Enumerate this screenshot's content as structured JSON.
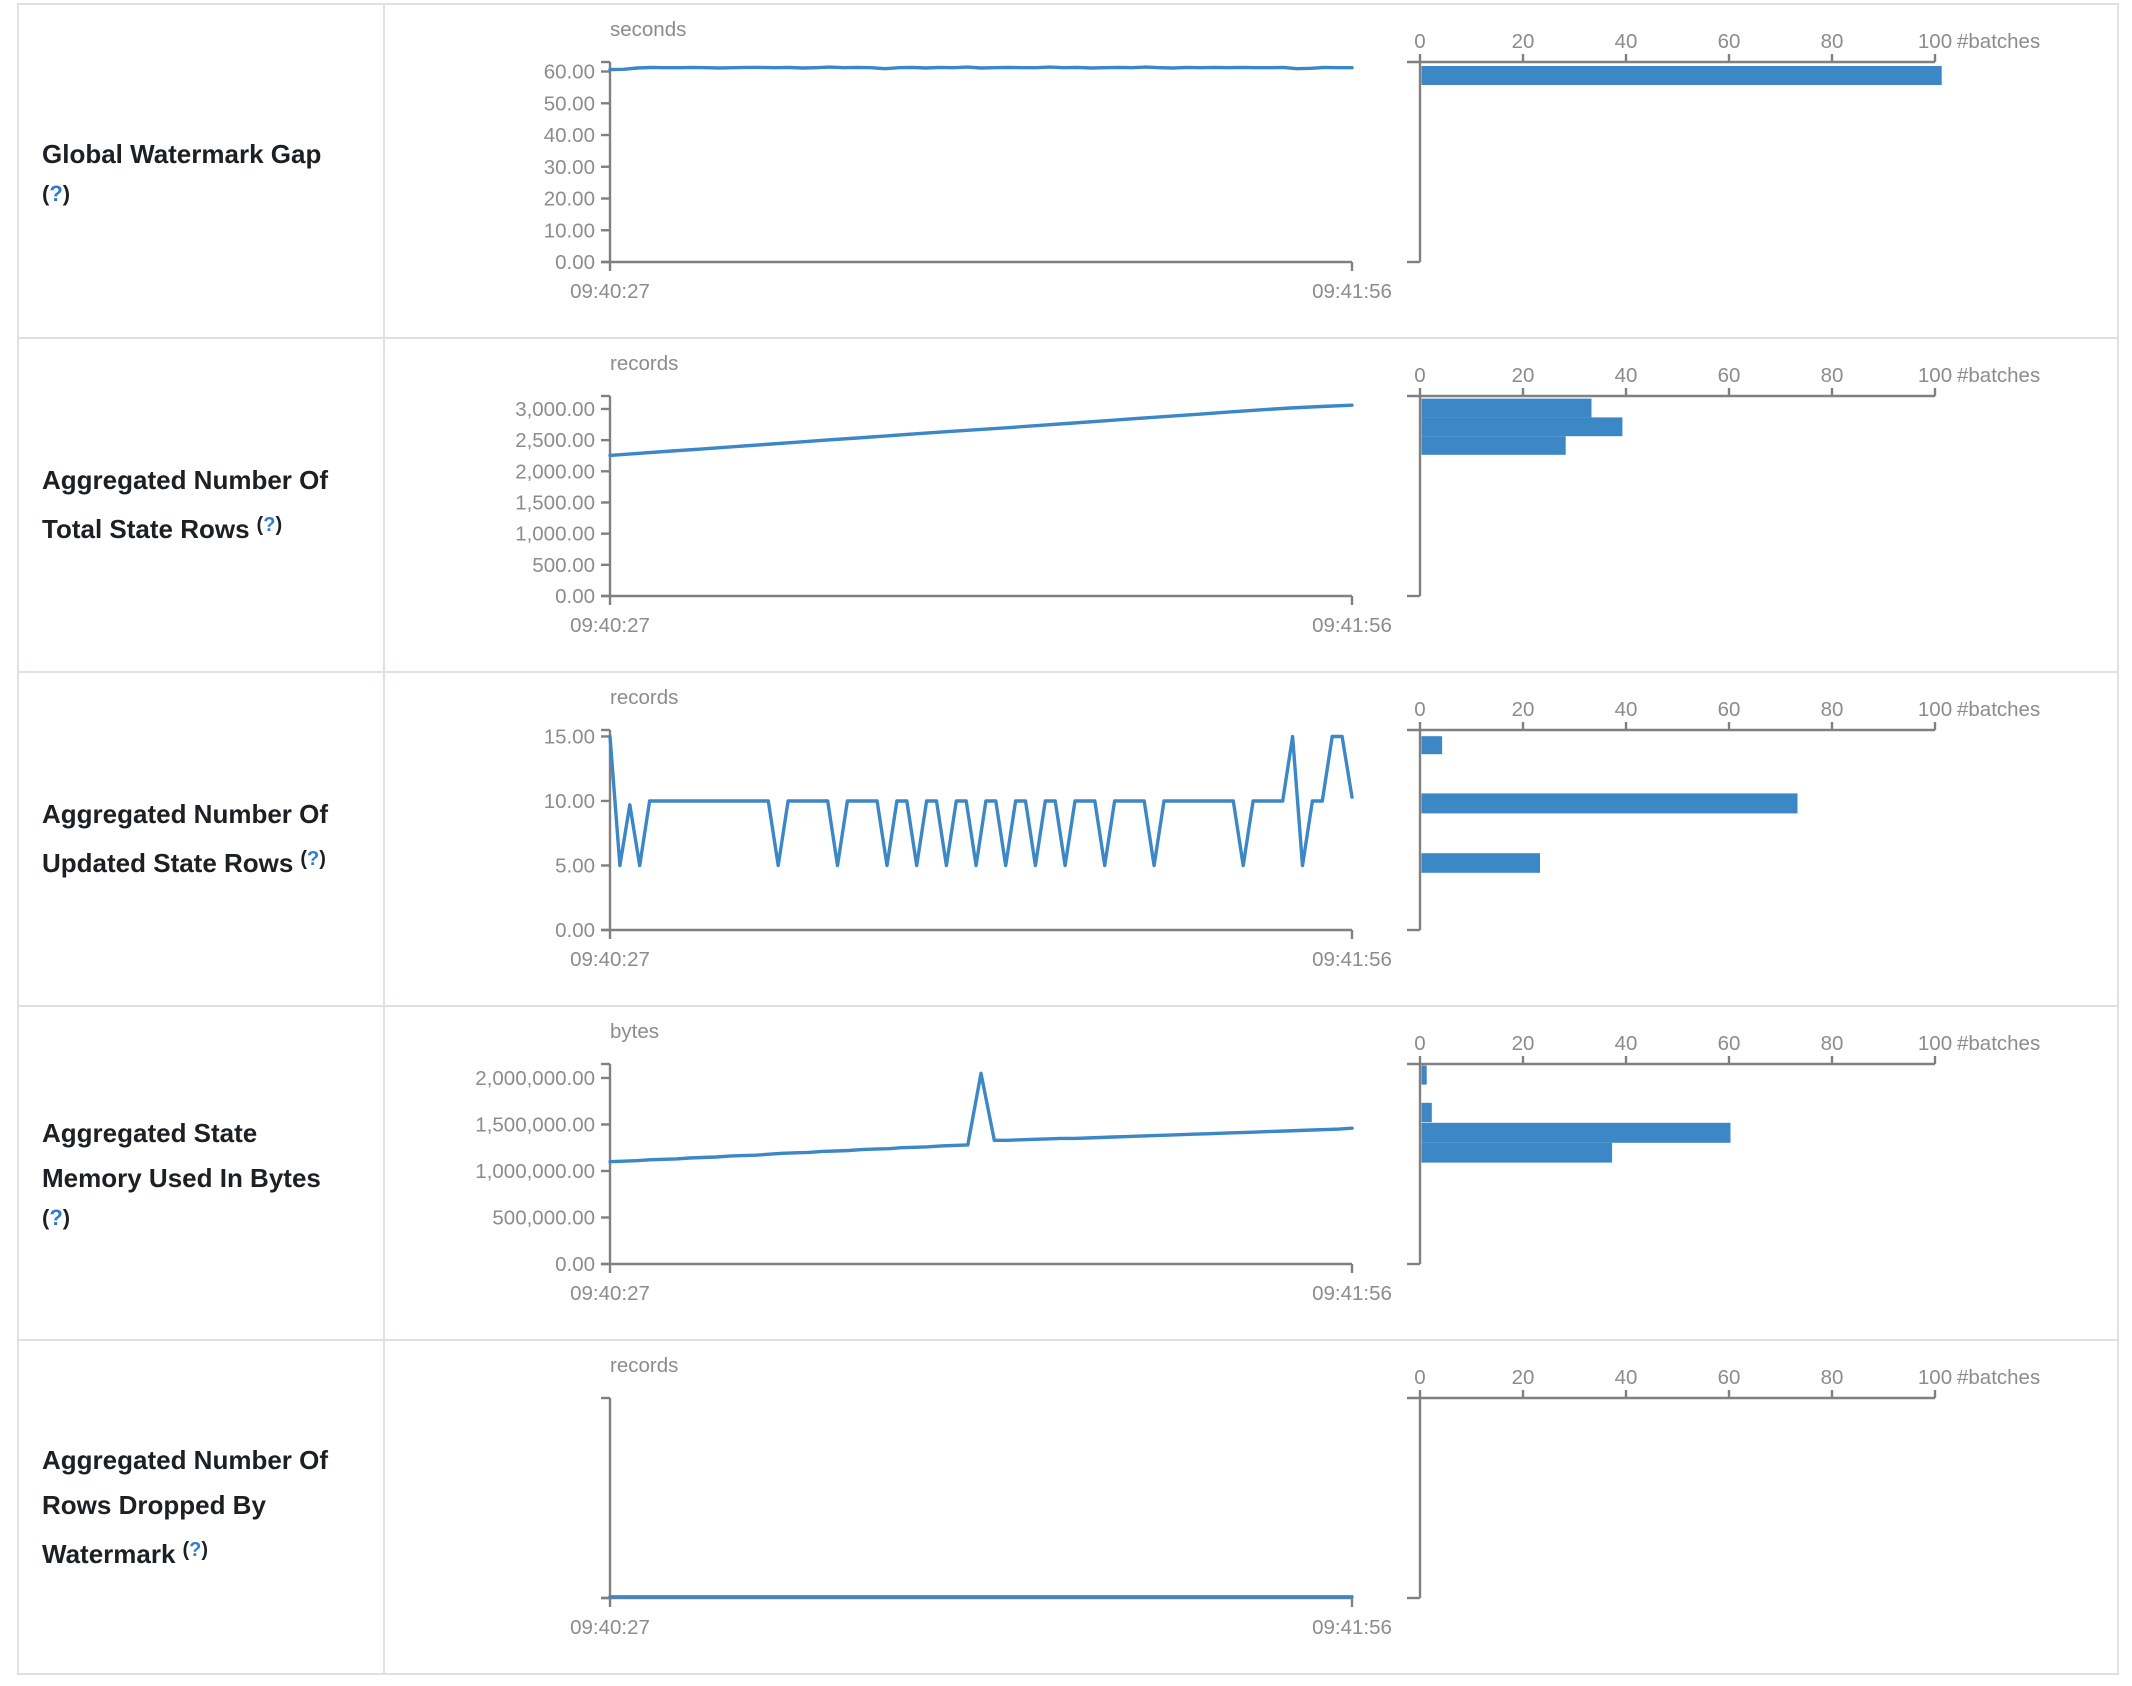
{
  "theme": {
    "accent_blue": "#3c87c6",
    "axis_gray": "#808080",
    "tick_text_gray": "#8c8c8c",
    "label_text": "#1c2025",
    "help_blue": "#2e7cd1",
    "border_gray": "#dde1e6",
    "background": "#ffffff"
  },
  "help_marker": {
    "open": "(",
    "q": "?",
    "close": ")"
  },
  "time_axis": {
    "start_label": "09:40:27",
    "end_label": "09:41:56"
  },
  "histogram_axis": {
    "tick_labels": [
      "0",
      "20",
      "40",
      "60",
      "80",
      "100"
    ],
    "max": 100,
    "unit_label": "#batches"
  },
  "rows": [
    {
      "label_lines": [
        "Global Watermark Gap"
      ],
      "help_inline": false,
      "chart_data": {
        "type": "line",
        "unit": "seconds",
        "x_range": [
          "09:40:27",
          "09:41:56"
        ],
        "y_axis_top": 63,
        "yticks": [
          {
            "v": 60,
            "label": "60.00"
          },
          {
            "v": 50,
            "label": "50.00"
          },
          {
            "v": 40,
            "label": "40.00"
          },
          {
            "v": 30,
            "label": "30.00"
          },
          {
            "v": 20,
            "label": "20.00"
          },
          {
            "v": 10,
            "label": "10.00"
          },
          {
            "v": 0,
            "label": "0.00"
          }
        ],
        "values": [
          60.6,
          60.7,
          61.1,
          61.3,
          61.2,
          61.2,
          61.3,
          61.2,
          61.1,
          61.2,
          61.3,
          61.3,
          61.2,
          61.3,
          61.1,
          61.2,
          61.4,
          61.2,
          61.3,
          61.2,
          60.9,
          61.2,
          61.3,
          61.1,
          61.3,
          61.2,
          61.4,
          61.1,
          61.2,
          61.3,
          61.2,
          61.2,
          61.4,
          61.2,
          61.3,
          61.1,
          61.2,
          61.3,
          61.2,
          61.4,
          61.2,
          61.1,
          61.3,
          61.2,
          61.3,
          61.2,
          61.3,
          61.2,
          61.2,
          61.3,
          60.9,
          61.0,
          61.3,
          61.2,
          61.2
        ]
      },
      "histogram_data": {
        "type": "bar",
        "unit": "#batches",
        "xticks": [
          0,
          20,
          40,
          60,
          80,
          100
        ],
        "bars": [
          {
            "count": 101,
            "frac_top": 0.02,
            "frac_bottom": 0.115
          }
        ]
      }
    },
    {
      "label_lines": [
        "Aggregated Number Of",
        "Total State Rows"
      ],
      "help_inline": true,
      "chart_data": {
        "type": "line",
        "unit": "records",
        "x_range": [
          "09:40:27",
          "09:41:56"
        ],
        "y_axis_top": 3208,
        "yticks": [
          {
            "v": 3000,
            "label": "3,000.00"
          },
          {
            "v": 2500,
            "label": "2,500.00"
          },
          {
            "v": 2000,
            "label": "2,000.00"
          },
          {
            "v": 1500,
            "label": "1,500.00"
          },
          {
            "v": 1000,
            "label": "1,000.00"
          },
          {
            "v": 500,
            "label": "500.00"
          },
          {
            "v": 0,
            "label": "0.00"
          }
        ],
        "values": [
          2255,
          2290,
          2325,
          2360,
          2395,
          2430,
          2465,
          2500,
          2535,
          2570,
          2605,
          2640,
          2672,
          2705,
          2740,
          2775,
          2810,
          2845,
          2880,
          2915,
          2950,
          2985,
          3015,
          3040,
          3060
        ]
      },
      "histogram_data": {
        "type": "bar",
        "unit": "#batches",
        "xticks": [
          0,
          20,
          40,
          60,
          80,
          100
        ],
        "bars": [
          {
            "count": 33,
            "frac_top": 0.013,
            "frac_bottom": 0.107
          },
          {
            "count": 39,
            "frac_top": 0.107,
            "frac_bottom": 0.201
          },
          {
            "count": 28,
            "frac_top": 0.201,
            "frac_bottom": 0.294
          }
        ]
      }
    },
    {
      "label_lines": [
        "Aggregated Number Of",
        "Updated State Rows"
      ],
      "help_inline": true,
      "chart_data": {
        "type": "line",
        "unit": "records",
        "x_range": [
          "09:40:27",
          "09:41:56"
        ],
        "y_axis_top": 15.5,
        "yticks": [
          {
            "v": 15,
            "label": "15.00"
          },
          {
            "v": 10,
            "label": "10.00"
          },
          {
            "v": 5,
            "label": "5.00"
          },
          {
            "v": 0,
            "label": "0.00"
          }
        ],
        "values": [
          15,
          5,
          9.7,
          5,
          10,
          10,
          10,
          10,
          10,
          10,
          10,
          10,
          10,
          10,
          10,
          10,
          10,
          5,
          10,
          10,
          10,
          10,
          10,
          5,
          10,
          10,
          10,
          10,
          5,
          10,
          10,
          5,
          10,
          10,
          5,
          10,
          10,
          5,
          10,
          10,
          5,
          10,
          10,
          5,
          10,
          10,
          5,
          10,
          10,
          10,
          5,
          10,
          10,
          10,
          10,
          5,
          10,
          10,
          10,
          10,
          10,
          10,
          10,
          10,
          5,
          10,
          10,
          10,
          10,
          15,
          5,
          10,
          10,
          15,
          15,
          10.3
        ]
      },
      "histogram_data": {
        "type": "bar",
        "unit": "#batches",
        "xticks": [
          0,
          20,
          40,
          60,
          80,
          100
        ],
        "bars": [
          {
            "count": 4,
            "frac_top": 0.031,
            "frac_bottom": 0.121
          },
          {
            "count": 73,
            "frac_top": 0.317,
            "frac_bottom": 0.417
          },
          {
            "count": 23,
            "frac_top": 0.616,
            "frac_bottom": 0.714
          }
        ]
      }
    },
    {
      "label_lines": [
        "Aggregated State",
        "Memory Used In Bytes"
      ],
      "help_inline": false,
      "chart_data": {
        "type": "line",
        "unit": "bytes",
        "x_range": [
          "09:40:27",
          "09:41:56"
        ],
        "y_axis_top": 2150000,
        "yticks": [
          {
            "v": 2000000,
            "label": "2,000,000.00"
          },
          {
            "v": 1500000,
            "label": "1,500,000.00"
          },
          {
            "v": 1000000,
            "label": "1,000,000.00"
          },
          {
            "v": 500000,
            "label": "500,000.00"
          },
          {
            "v": 0,
            "label": "0.00"
          }
        ],
        "values": [
          1100000,
          1105000,
          1110000,
          1120000,
          1125000,
          1130000,
          1140000,
          1145000,
          1150000,
          1160000,
          1165000,
          1170000,
          1180000,
          1190000,
          1195000,
          1200000,
          1210000,
          1215000,
          1220000,
          1230000,
          1235000,
          1240000,
          1250000,
          1255000,
          1260000,
          1270000,
          1275000,
          1280000,
          2050000,
          1330000,
          1330000,
          1335000,
          1340000,
          1345000,
          1350000,
          1350000,
          1355000,
          1360000,
          1365000,
          1370000,
          1375000,
          1380000,
          1385000,
          1390000,
          1395000,
          1400000,
          1405000,
          1410000,
          1415000,
          1420000,
          1425000,
          1430000,
          1435000,
          1440000,
          1445000,
          1450000,
          1460000
        ]
      },
      "histogram_data": {
        "type": "bar",
        "unit": "#batches",
        "xticks": [
          0,
          20,
          40,
          60,
          80,
          100
        ],
        "bars": [
          {
            "count": 1,
            "frac_top": 0.008,
            "frac_bottom": 0.103
          },
          {
            "count": 2,
            "frac_top": 0.194,
            "frac_bottom": 0.291
          },
          {
            "count": 60,
            "frac_top": 0.294,
            "frac_bottom": 0.394
          },
          {
            "count": 37,
            "frac_top": 0.394,
            "frac_bottom": 0.493
          }
        ]
      }
    },
    {
      "label_lines": [
        "Aggregated Number Of",
        "Rows Dropped By",
        "Watermark"
      ],
      "help_inline": true,
      "chart_data": {
        "type": "line",
        "unit": "records",
        "x_range": [
          "09:40:27",
          "09:41:56"
        ],
        "y_axis_top": 1,
        "yticks": [],
        "values": [
          0,
          0
        ]
      },
      "histogram_data": {
        "type": "bar",
        "unit": "#batches",
        "xticks": [
          0,
          20,
          40,
          60,
          80,
          100
        ],
        "bars": []
      }
    }
  ]
}
